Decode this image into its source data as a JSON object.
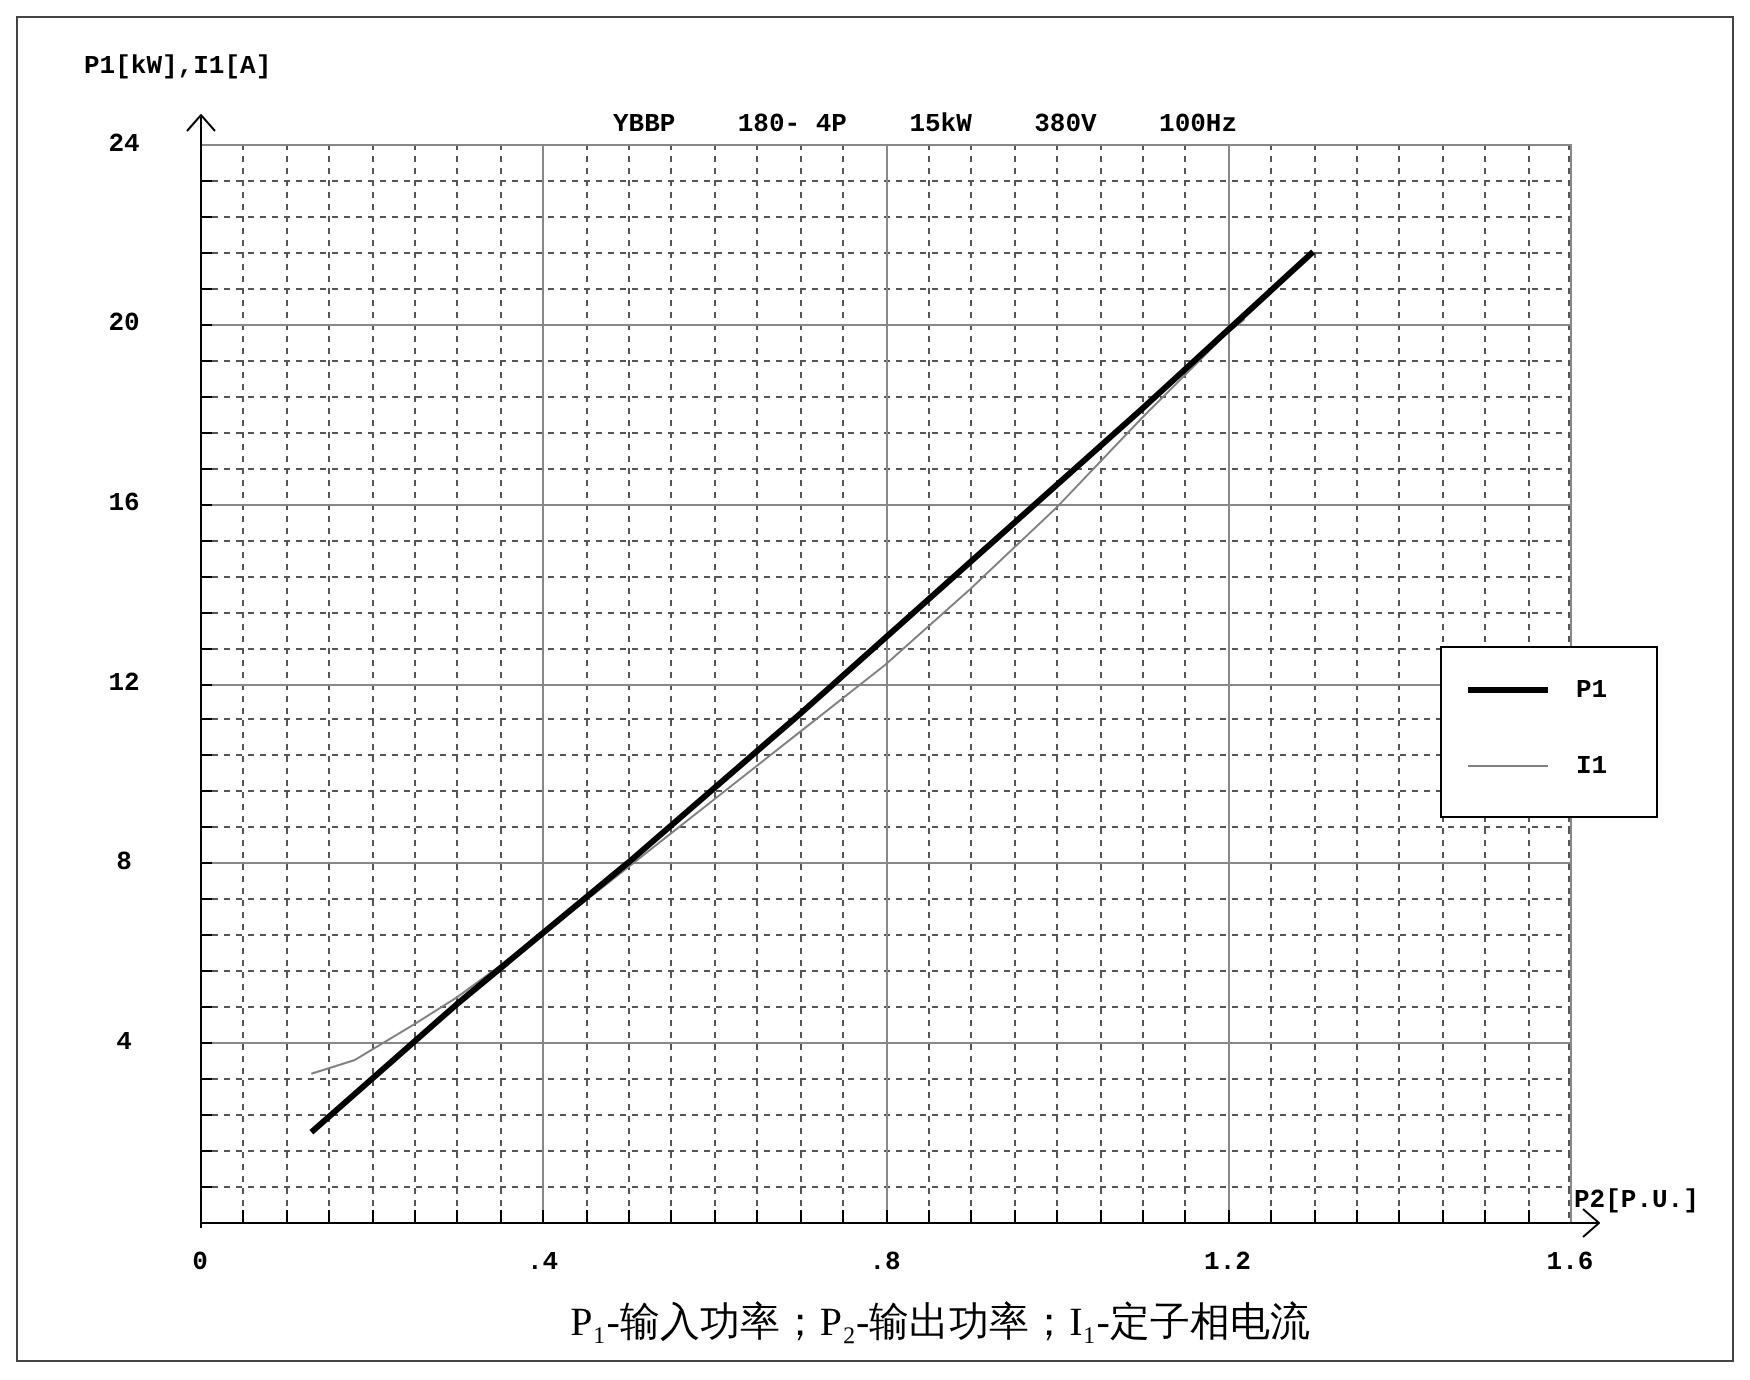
{
  "chart_data": {
    "type": "line",
    "title": "YBBP    180- 4P    15kW    380V    100Hz",
    "xlabel": "P2[P.U.]",
    "ylabel": "P1[kW],I1[A]",
    "annotations": [
      "P₁-输入功率；P₂-输出功率；I₁-定子相电流"
    ],
    "xlim": [
      0,
      1.6
    ],
    "xticks": [
      {
        "value": 0,
        "label": "0"
      },
      {
        "value": 0.4,
        "label": ".4"
      },
      {
        "value": 0.8,
        "label": ".8"
      },
      1.2,
      1.6
    ],
    "ylim": [
      0,
      24
    ],
    "yticks": [
      {
        "value": 0,
        "label": null
      },
      4,
      8,
      12,
      16,
      20,
      24
    ],
    "grid": true,
    "legend": "right",
    "marker": "none",
    "line_style": "solid",
    "series": [
      {
        "name": "P1",
        "color": "#000000",
        "x": [
          0.13,
          0.3,
          0.5,
          0.7,
          0.9,
          1.1,
          1.3
        ],
        "values": [
          2.0,
          4.85,
          8.0,
          11.3,
          14.7,
          18.1,
          21.6
        ]
      },
      {
        "name": "I1",
        "color": "#808080",
        "x": [
          0.13,
          0.18,
          0.25,
          0.3,
          0.4,
          0.5,
          0.6,
          0.7,
          0.8,
          0.9,
          1.0,
          1.1,
          1.2,
          1.22
        ],
        "values": [
          3.3,
          3.6,
          4.4,
          5.0,
          6.4,
          7.9,
          9.4,
          10.9,
          12.4,
          14.1,
          15.9,
          17.9,
          19.8,
          20.1
        ]
      }
    ]
  }
}
